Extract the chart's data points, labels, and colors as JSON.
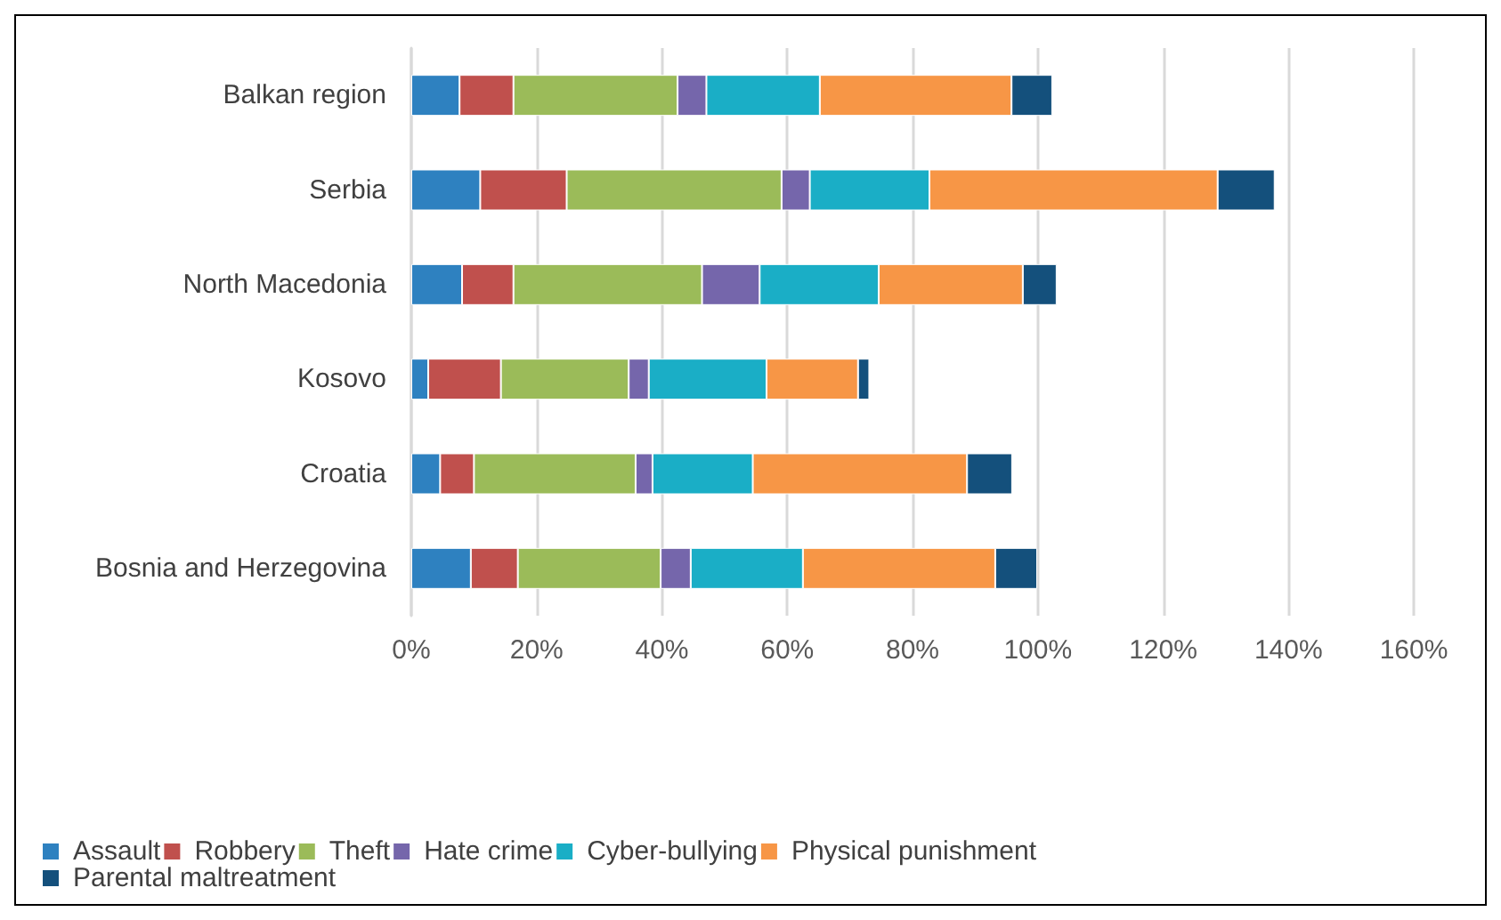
{
  "chart_data": {
    "type": "bar",
    "orientation": "horizontal",
    "stacked": true,
    "categories": [
      "Balkan region",
      "Serbia",
      "North Macedonia",
      "Kosovo",
      "Croatia",
      "Bosnia and Herzegovina"
    ],
    "series": [
      {
        "name": "Assault",
        "color": "#2e81c0",
        "values": [
          7.7,
          11.0,
          8.1,
          2.7,
          4.6,
          9.5
        ]
      },
      {
        "name": "Robbery",
        "color": "#c0504d",
        "values": [
          8.6,
          13.8,
          8.2,
          11.6,
          5.4,
          7.5
        ]
      },
      {
        "name": "Theft",
        "color": "#9bbb59",
        "values": [
          26.2,
          34.3,
          30.1,
          20.4,
          25.8,
          22.8
        ]
      },
      {
        "name": "Hate crime",
        "color": "#7566ab",
        "values": [
          4.6,
          4.5,
          9.2,
          3.2,
          2.7,
          4.8
        ]
      },
      {
        "name": "Cyber-bullying",
        "color": "#1aaec6",
        "values": [
          18.1,
          19.1,
          19.0,
          18.8,
          16.0,
          17.9
        ]
      },
      {
        "name": "Physical punishment",
        "color": "#f79646",
        "values": [
          30.6,
          46.0,
          23.0,
          14.6,
          34.2,
          30.7
        ]
      },
      {
        "name": "Parental maltreatment",
        "color": "#14507c",
        "values": [
          6.5,
          9.1,
          5.4,
          1.8,
          7.2,
          6.7
        ]
      }
    ],
    "xlim": [
      0,
      160
    ],
    "xticks": [
      {
        "value": 0,
        "label": "0%"
      },
      {
        "value": 20,
        "label": "20%"
      },
      {
        "value": 40,
        "label": "40%"
      },
      {
        "value": 60,
        "label": "60%"
      },
      {
        "value": 80,
        "label": "80%"
      },
      {
        "value": 100,
        "label": "100%"
      },
      {
        "value": 120,
        "label": "120%"
      },
      {
        "value": 140,
        "label": "140%"
      },
      {
        "value": 160,
        "label": "160%"
      }
    ],
    "grid": "x",
    "legend": "bottom"
  }
}
